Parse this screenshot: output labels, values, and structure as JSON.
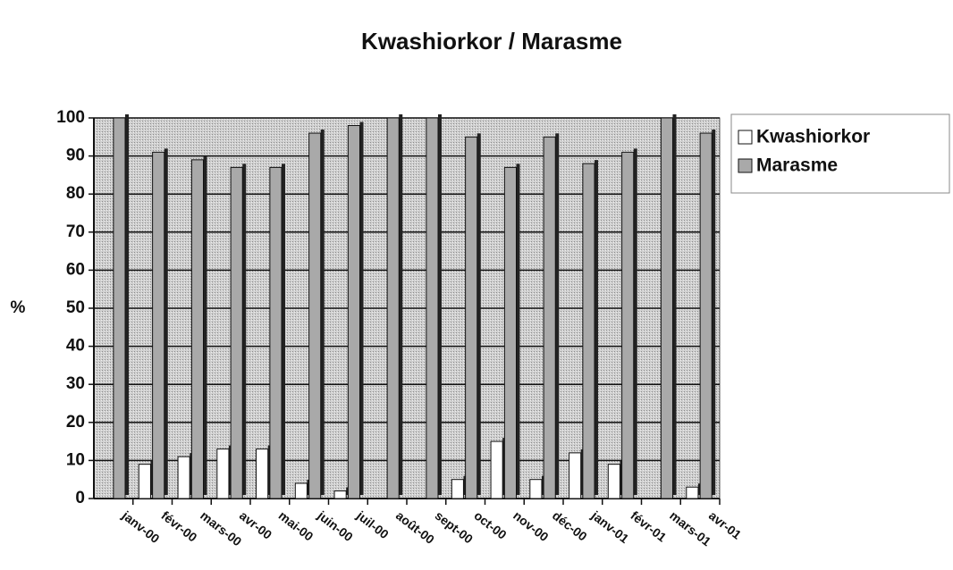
{
  "chart_data": {
    "type": "bar",
    "title": "Kwashiorkor / Marasme",
    "y_label": "%",
    "categories": [
      "janv-00",
      "févr-00",
      "mars-00",
      "avr-00",
      "mai-00",
      "juin-00",
      "juil-00",
      "août-00",
      "sept-00",
      "oct-00",
      "nov-00",
      "déc-00",
      "janv-01",
      "févr-01",
      "mars-01",
      "avr-01"
    ],
    "series": [
      {
        "name": "Kwashiorkor",
        "color": "#ffffff",
        "values": [
          0,
          9,
          11,
          13,
          13,
          4,
          2,
          0,
          0,
          5,
          15,
          5,
          12,
          9,
          0,
          3
        ]
      },
      {
        "name": "Marasme",
        "color": "#a9a9a9",
        "values": [
          100,
          91,
          89,
          87,
          87,
          96,
          98,
          100,
          100,
          95,
          87,
          95,
          88,
          91,
          100,
          96
        ]
      }
    ],
    "ylim": [
      0,
      100
    ],
    "yticks": [
      0,
      10,
      20,
      30,
      40,
      50,
      60,
      70,
      80,
      90,
      100
    ],
    "grid": true,
    "legend": "right"
  }
}
